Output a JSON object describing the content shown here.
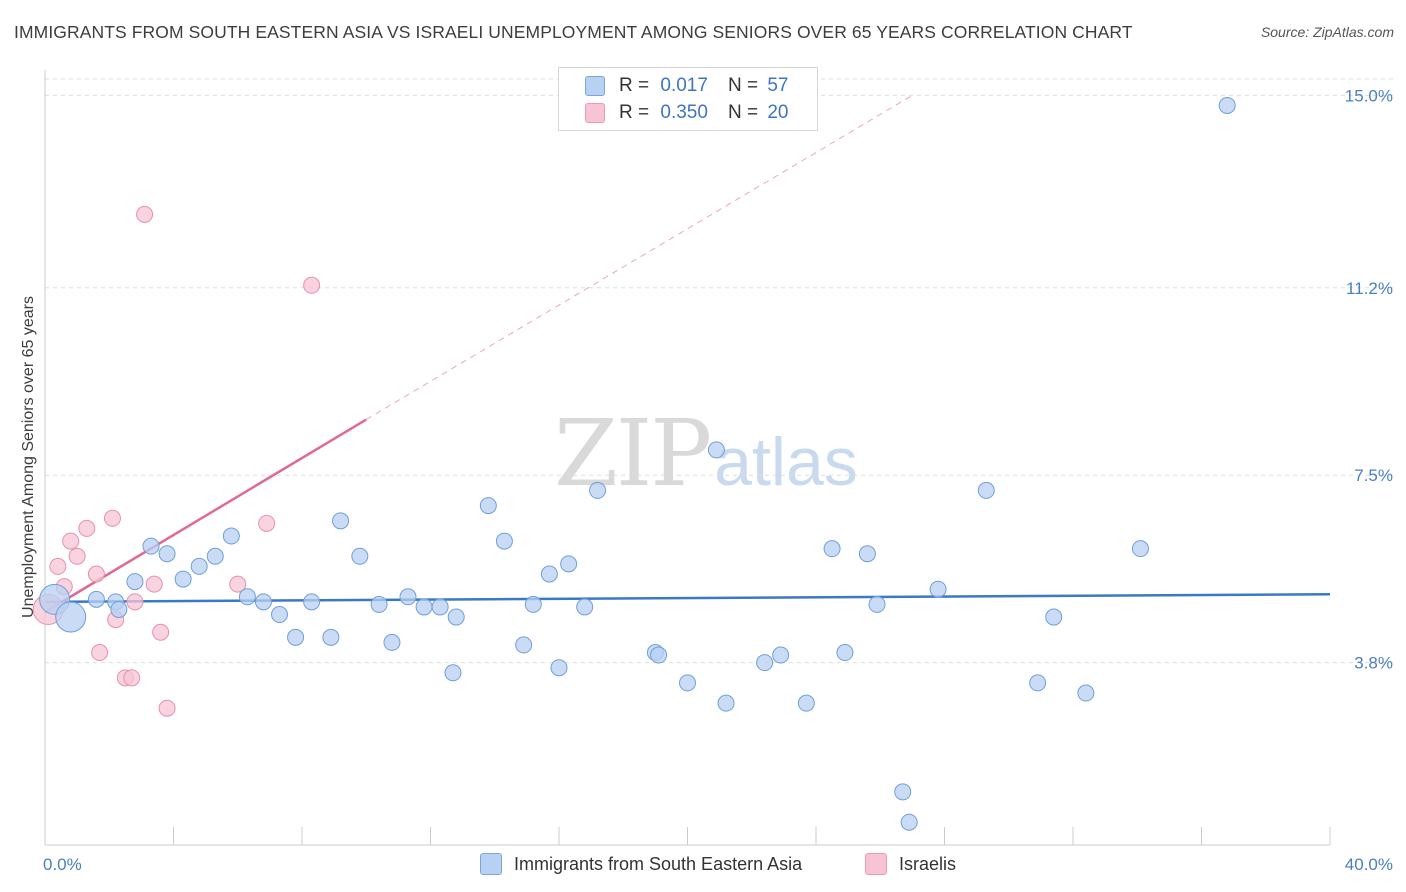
{
  "title": "IMMIGRANTS FROM SOUTH EASTERN ASIA VS ISRAELI UNEMPLOYMENT AMONG SENIORS OVER 65 YEARS CORRELATION CHART",
  "source": "Source: ZipAtlas.com",
  "watermark": {
    "part1": "ZIP",
    "part2": "atlas"
  },
  "legend": {
    "rows": [
      {
        "r_label": "R =",
        "r_value": "0.017",
        "n_label": "N =",
        "n_value": "57",
        "color": "#b8d0f2"
      },
      {
        "r_label": "R =",
        "r_value": "0.350",
        "n_label": "N =",
        "n_value": "20",
        "color": "#f7c4d4"
      }
    ]
  },
  "bottom_legend": [
    {
      "label": "Immigrants from South Eastern Asia",
      "color": "#b8d0f2"
    },
    {
      "label": "Israelis",
      "color": "#f7c4d4"
    }
  ],
  "chart_data": {
    "type": "scatter",
    "title": "IMMIGRANTS FROM SOUTH EASTERN ASIA VS ISRAELI UNEMPLOYMENT AMONG SENIORS OVER 65 YEARS CORRELATION CHART",
    "xlabel": "",
    "ylabel": "Unemployment Among Seniors over 65 years",
    "xlim": [
      0,
      40
    ],
    "ylim": [
      0.2,
      15.5
    ],
    "x_tick_labels": [
      {
        "value": 0,
        "label": "0.0%"
      },
      {
        "value": 40,
        "label": "40.0%"
      }
    ],
    "y_tick_labels": [
      {
        "value": 3.8,
        "label": "3.8%"
      },
      {
        "value": 7.5,
        "label": "7.5%"
      },
      {
        "value": 11.2,
        "label": "11.2%"
      },
      {
        "value": 15.0,
        "label": "15.0%"
      }
    ],
    "y_gridlines": [
      3.8,
      7.5,
      11.2,
      15.0
    ],
    "grid": true,
    "legend_position": "top-center",
    "series": [
      {
        "name": "Immigrants from South Eastern Asia",
        "color": "#b8d0f2",
        "stroke": "#6f9fd8",
        "trend": {
          "x": [
            0,
            40
          ],
          "y": [
            5.0,
            5.15
          ],
          "color": "#3a78c9",
          "dashed_extension": false
        },
        "points": [
          {
            "x": 0.3,
            "y": 5.05,
            "big": true
          },
          {
            "x": 0.8,
            "y": 4.7,
            "big": true
          },
          {
            "x": 1.6,
            "y": 5.05
          },
          {
            "x": 2.2,
            "y": 5.0
          },
          {
            "x": 2.3,
            "y": 4.85
          },
          {
            "x": 2.8,
            "y": 5.4
          },
          {
            "x": 3.3,
            "y": 6.1
          },
          {
            "x": 3.8,
            "y": 5.95
          },
          {
            "x": 4.3,
            "y": 5.45
          },
          {
            "x": 4.8,
            "y": 5.7
          },
          {
            "x": 5.3,
            "y": 5.9
          },
          {
            "x": 5.8,
            "y": 6.3
          },
          {
            "x": 6.3,
            "y": 5.1
          },
          {
            "x": 6.8,
            "y": 5.0
          },
          {
            "x": 7.3,
            "y": 4.75
          },
          {
            "x": 7.8,
            "y": 4.3
          },
          {
            "x": 8.3,
            "y": 5.0
          },
          {
            "x": 8.9,
            "y": 4.3
          },
          {
            "x": 9.2,
            "y": 6.6
          },
          {
            "x": 9.8,
            "y": 5.9
          },
          {
            "x": 10.4,
            "y": 4.95
          },
          {
            "x": 10.8,
            "y": 4.2
          },
          {
            "x": 11.3,
            "y": 5.1
          },
          {
            "x": 11.8,
            "y": 4.9
          },
          {
            "x": 12.3,
            "y": 4.9
          },
          {
            "x": 12.8,
            "y": 4.7
          },
          {
            "x": 12.7,
            "y": 3.6
          },
          {
            "x": 13.8,
            "y": 6.9
          },
          {
            "x": 14.3,
            "y": 6.2
          },
          {
            "x": 14.9,
            "y": 4.15
          },
          {
            "x": 15.2,
            "y": 4.95
          },
          {
            "x": 15.7,
            "y": 5.55
          },
          {
            "x": 16.0,
            "y": 3.7
          },
          {
            "x": 16.3,
            "y": 5.75
          },
          {
            "x": 16.8,
            "y": 4.9
          },
          {
            "x": 17.2,
            "y": 7.2
          },
          {
            "x": 19.0,
            "y": 4.0
          },
          {
            "x": 19.1,
            "y": 3.95
          },
          {
            "x": 20.0,
            "y": 3.4
          },
          {
            "x": 20.9,
            "y": 8.0
          },
          {
            "x": 21.2,
            "y": 3.0
          },
          {
            "x": 22.4,
            "y": 3.8
          },
          {
            "x": 22.9,
            "y": 3.95
          },
          {
            "x": 23.7,
            "y": 3.0
          },
          {
            "x": 24.5,
            "y": 6.05
          },
          {
            "x": 24.9,
            "y": 4.0
          },
          {
            "x": 25.6,
            "y": 5.95
          },
          {
            "x": 25.9,
            "y": 4.95
          },
          {
            "x": 26.7,
            "y": 1.25
          },
          {
            "x": 26.9,
            "y": 0.65
          },
          {
            "x": 27.8,
            "y": 5.25
          },
          {
            "x": 29.3,
            "y": 7.2
          },
          {
            "x": 30.9,
            "y": 3.4
          },
          {
            "x": 31.4,
            "y": 4.7
          },
          {
            "x": 32.4,
            "y": 3.2
          },
          {
            "x": 34.1,
            "y": 6.05
          },
          {
            "x": 36.8,
            "y": 14.8
          }
        ]
      },
      {
        "name": "Israelis",
        "color": "#f7c4d4",
        "stroke": "#e890ab",
        "trend": {
          "x": [
            0,
            10.0
          ],
          "y": [
            4.8,
            8.6
          ],
          "extension_to": [
            27.0,
            15.0
          ],
          "color": "#e06a93",
          "dashed_extension": true
        },
        "points": [
          {
            "x": 0.1,
            "y": 4.85,
            "big": true
          },
          {
            "x": 0.4,
            "y": 5.7
          },
          {
            "x": 0.6,
            "y": 5.3
          },
          {
            "x": 0.8,
            "y": 6.2
          },
          {
            "x": 1.0,
            "y": 5.9
          },
          {
            "x": 1.3,
            "y": 6.45
          },
          {
            "x": 1.6,
            "y": 5.55
          },
          {
            "x": 1.7,
            "y": 4.0
          },
          {
            "x": 2.1,
            "y": 6.65
          },
          {
            "x": 2.2,
            "y": 4.65
          },
          {
            "x": 2.5,
            "y": 3.5
          },
          {
            "x": 2.7,
            "y": 3.5
          },
          {
            "x": 2.8,
            "y": 5.0
          },
          {
            "x": 3.1,
            "y": 12.65
          },
          {
            "x": 3.4,
            "y": 5.35
          },
          {
            "x": 3.6,
            "y": 4.4
          },
          {
            "x": 3.8,
            "y": 2.9
          },
          {
            "x": 6.0,
            "y": 5.35
          },
          {
            "x": 6.9,
            "y": 6.55
          },
          {
            "x": 8.3,
            "y": 11.25
          }
        ]
      }
    ]
  }
}
